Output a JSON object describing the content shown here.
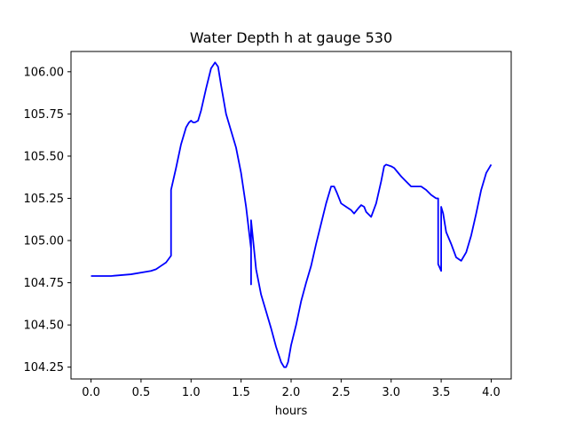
{
  "chart_data": {
    "type": "line",
    "title": "Water Depth h at gauge 530",
    "xlabel": "hours",
    "ylabel": "",
    "xlim": [
      -0.2,
      4.2
    ],
    "ylim": [
      104.18,
      106.12
    ],
    "grid": false,
    "x_ticks": [
      0.0,
      0.5,
      1.0,
      1.5,
      2.0,
      2.5,
      3.0,
      3.5,
      4.0
    ],
    "x_tick_labels": [
      "0.0",
      "0.5",
      "1.0",
      "1.5",
      "2.0",
      "2.5",
      "3.0",
      "3.5",
      "4.0"
    ],
    "y_ticks": [
      104.25,
      104.5,
      104.75,
      105.0,
      105.25,
      105.5,
      105.75,
      106.0
    ],
    "y_tick_labels": [
      "104.25",
      "104.50",
      "104.75",
      "105.00",
      "105.25",
      "105.50",
      "105.75",
      "106.00"
    ],
    "series": [
      {
        "color": "#0000ff",
        "x": [
          0.0,
          0.2,
          0.4,
          0.6,
          0.65,
          0.7,
          0.75,
          0.8,
          0.8,
          0.85,
          0.9,
          0.95,
          0.98,
          1.0,
          1.02,
          1.04,
          1.07,
          1.1,
          1.15,
          1.2,
          1.24,
          1.27,
          1.3,
          1.35,
          1.4,
          1.45,
          1.5,
          1.55,
          1.6,
          1.6,
          1.6,
          1.65,
          1.7,
          1.75,
          1.8,
          1.85,
          1.9,
          1.93,
          1.95,
          1.97,
          2.0,
          2.05,
          2.1,
          2.15,
          2.2,
          2.25,
          2.3,
          2.35,
          2.4,
          2.43,
          2.46,
          2.5,
          2.55,
          2.6,
          2.63,
          2.67,
          2.7,
          2.73,
          2.75,
          2.8,
          2.85,
          2.9,
          2.93,
          2.95,
          3.0,
          3.03,
          3.1,
          3.15,
          3.2,
          3.25,
          3.3,
          3.35,
          3.4,
          3.45,
          3.47,
          3.47,
          3.5,
          3.5,
          3.52,
          3.55,
          3.6,
          3.65,
          3.7,
          3.75,
          3.8,
          3.85,
          3.9,
          3.95,
          4.0
        ],
        "values": [
          104.79,
          104.79,
          104.8,
          104.82,
          104.83,
          104.85,
          104.87,
          104.91,
          105.3,
          105.43,
          105.57,
          105.67,
          105.7,
          105.71,
          105.7,
          105.7,
          105.71,
          105.77,
          105.9,
          106.02,
          106.055,
          106.03,
          105.92,
          105.75,
          105.65,
          105.55,
          105.4,
          105.2,
          104.95,
          104.74,
          105.12,
          104.83,
          104.68,
          104.58,
          104.48,
          104.37,
          104.28,
          104.25,
          104.25,
          104.28,
          104.38,
          104.5,
          104.64,
          104.75,
          104.85,
          104.98,
          105.1,
          105.22,
          105.32,
          105.32,
          105.28,
          105.22,
          105.2,
          105.18,
          105.16,
          105.19,
          105.21,
          105.2,
          105.17,
          105.14,
          105.22,
          105.35,
          105.44,
          105.45,
          105.44,
          105.43,
          105.38,
          105.35,
          105.32,
          105.32,
          105.32,
          105.3,
          105.27,
          105.25,
          105.25,
          104.86,
          104.82,
          105.2,
          105.16,
          105.05,
          104.98,
          104.9,
          104.88,
          104.93,
          105.03,
          105.16,
          105.3,
          105.4,
          105.45
        ]
      }
    ]
  }
}
